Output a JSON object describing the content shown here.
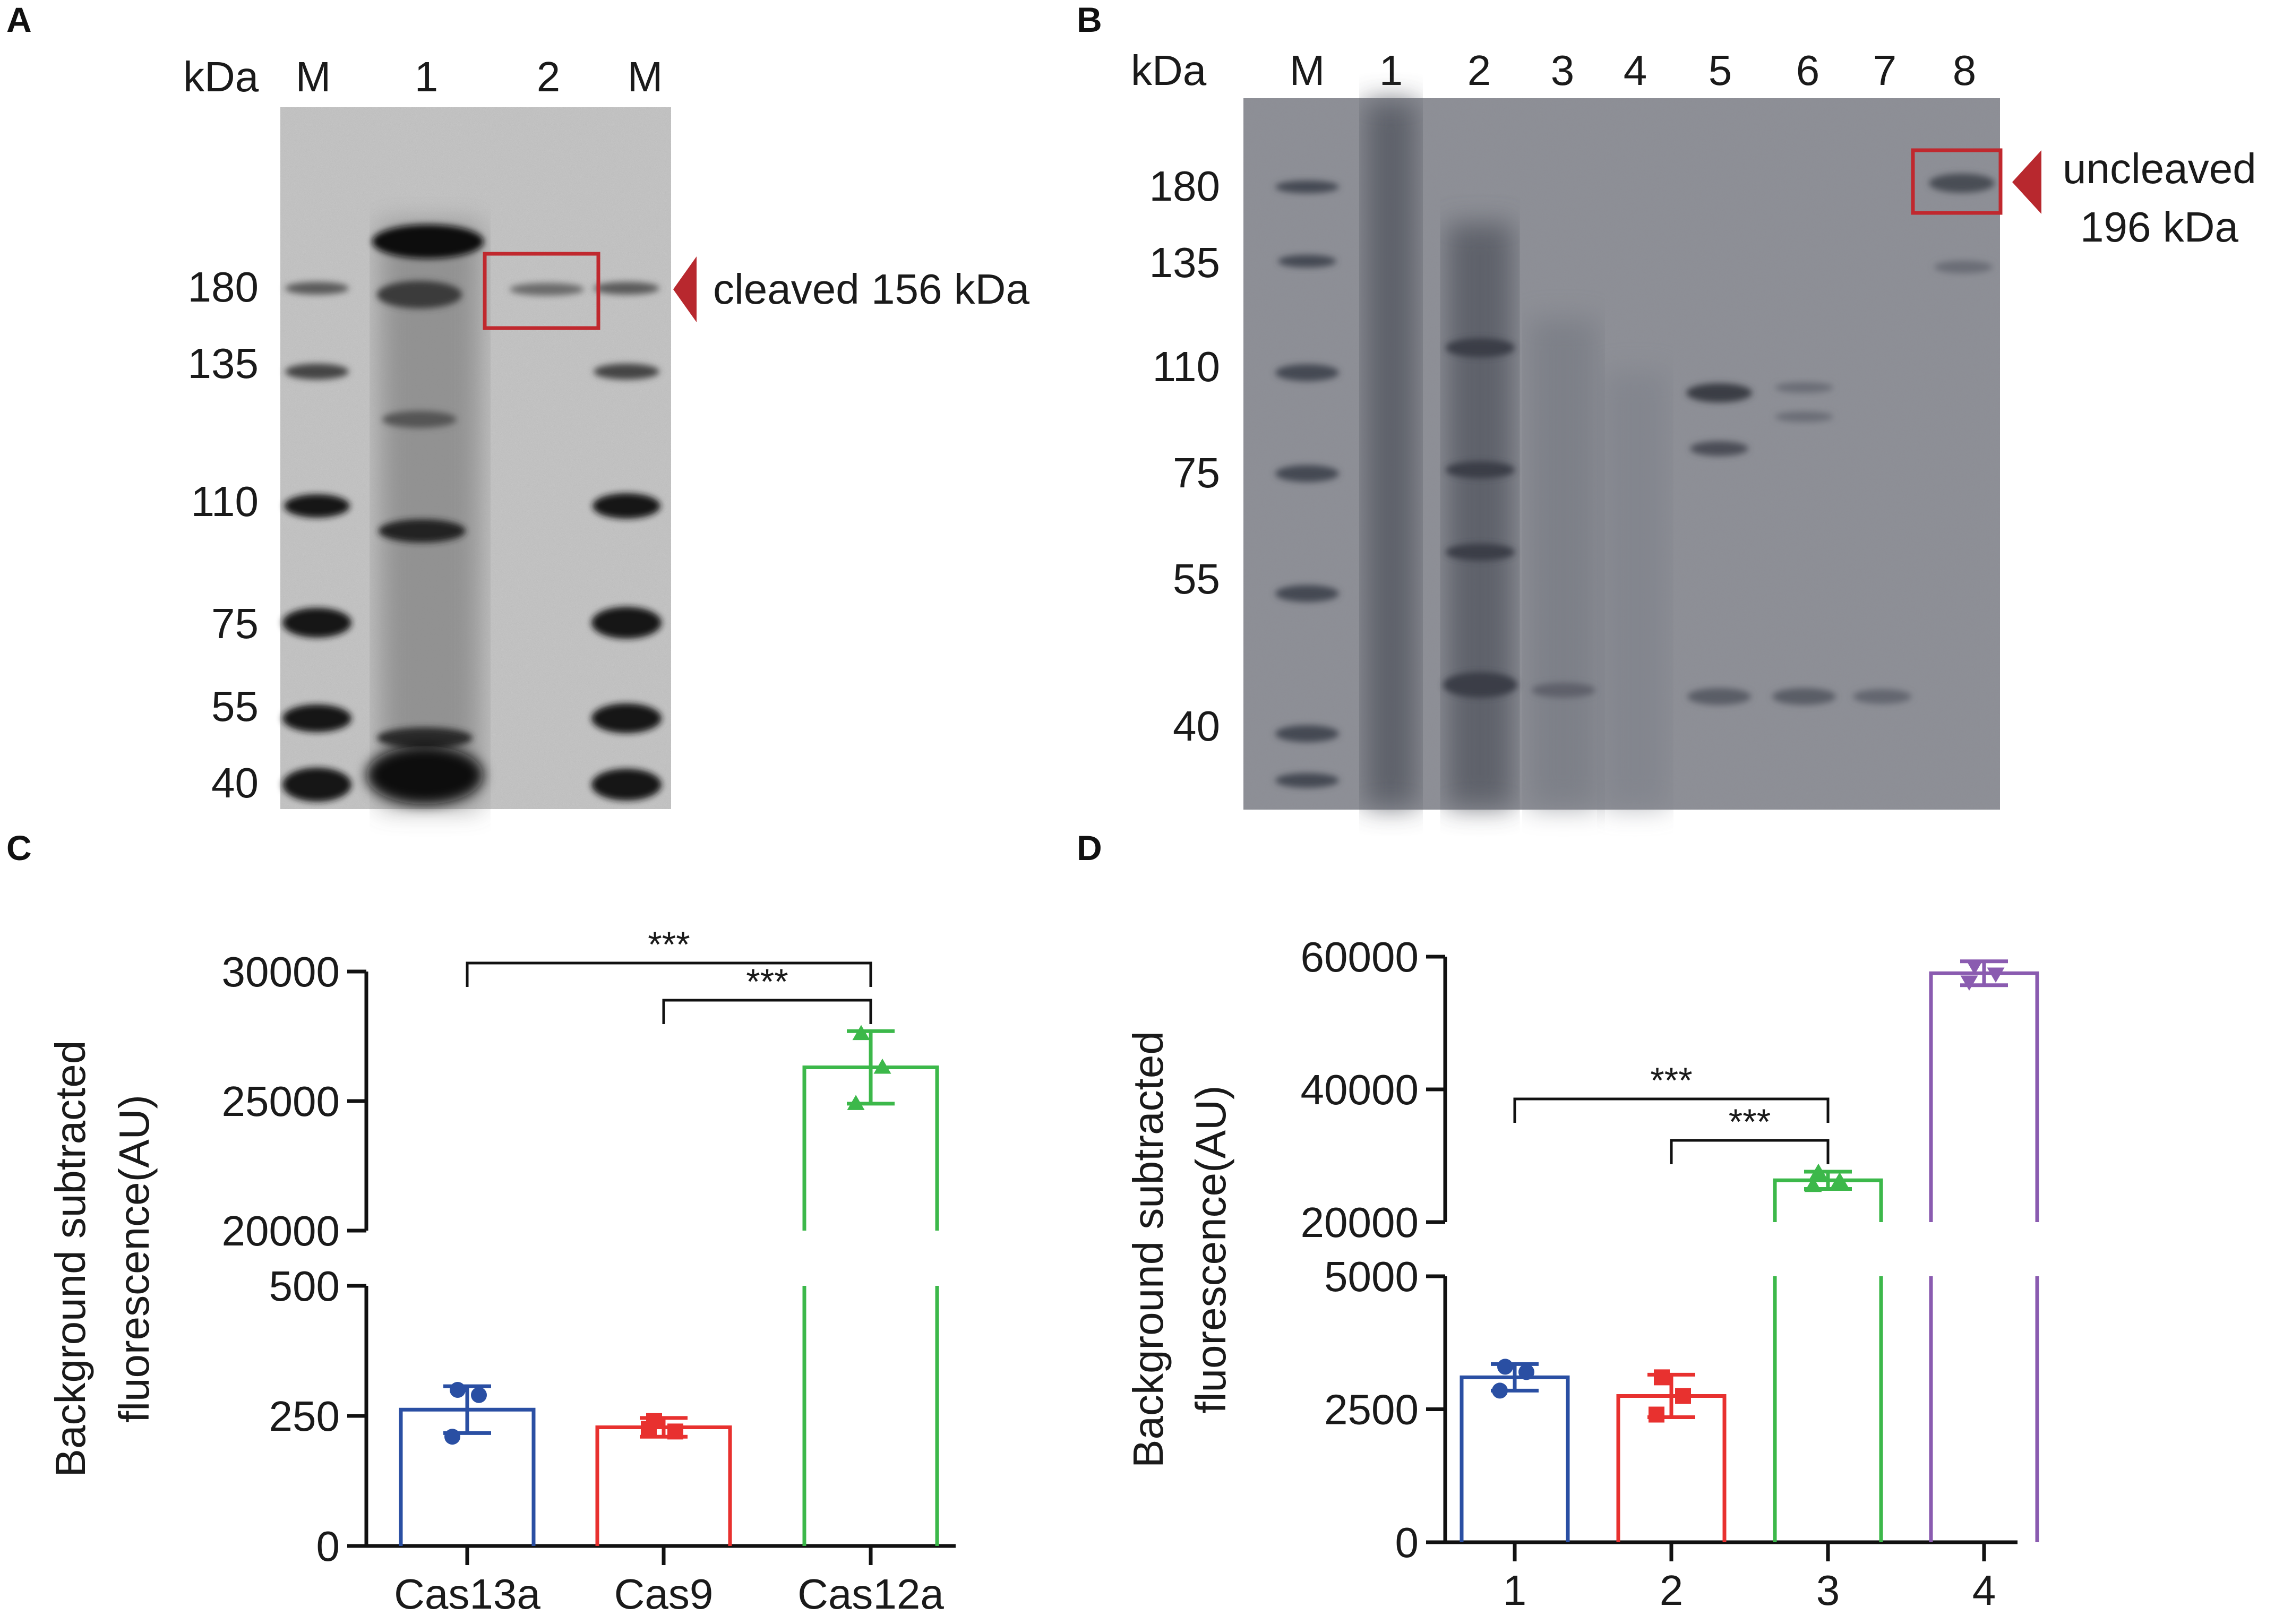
{
  "figure": {
    "panels": [
      "A",
      "B",
      "C",
      "D"
    ]
  },
  "gel_a": {
    "unit_label": "kDa",
    "lanes": [
      "M",
      "1",
      "2",
      "M"
    ],
    "markers": [
      "180",
      "135",
      "110",
      "75",
      "55",
      "40"
    ],
    "annotation": "cleaved 156 kDa",
    "colors": {
      "box": "#c0282e",
      "arrow": "#b8282e"
    }
  },
  "gel_b": {
    "unit_label": "kDa",
    "lanes": [
      "M",
      "1",
      "2",
      "3",
      "4",
      "5",
      "6",
      "7",
      "8"
    ],
    "markers": [
      "180",
      "135",
      "110",
      "75",
      "55",
      "40"
    ],
    "annotation_line1": "uncleaved",
    "annotation_line2": "196 kDa",
    "colors": {
      "box": "#c0282e",
      "arrow": "#b8282e"
    }
  },
  "chart_data": [
    {
      "panel": "C",
      "type": "bar",
      "ylabel_line1": "Background subtracted",
      "ylabel_line2": "fluorescence(AU)",
      "categories": [
        "Cas13a",
        "Cas9",
        "Cas12a"
      ],
      "values": [
        262,
        228,
        26300
      ],
      "errors": [
        45,
        18,
        1400
      ],
      "points": [
        [
          300,
          290,
          210
        ],
        [
          240,
          220,
          225
        ],
        [
          27600,
          26300,
          24900
        ]
      ],
      "markers": [
        "circle",
        "square",
        "triangle-up"
      ],
      "colors": [
        "#2a4fa3",
        "#e8312f",
        "#3cb84a"
      ],
      "axis_break": {
        "lower_ylim": [
          0,
          500
        ],
        "upper_ylim": [
          20000,
          30000
        ]
      },
      "ticks_lower": [
        "0",
        "250",
        "500"
      ],
      "ticks_upper": [
        "20000",
        "25000",
        "30000"
      ],
      "significance": [
        {
          "from": "Cas13a",
          "to": "Cas12a",
          "label": "***"
        },
        {
          "from": "Cas9",
          "to": "Cas12a",
          "label": "***"
        }
      ]
    },
    {
      "panel": "D",
      "type": "bar",
      "ylabel_line1": "Background subtracted",
      "ylabel_line2": "fluorescence(AU)",
      "categories": [
        "1",
        "2",
        "3",
        "4"
      ],
      "values": [
        3100,
        2750,
        26300,
        57500
      ],
      "errors": [
        250,
        400,
        1300,
        1800
      ],
      "points": [
        [
          3300,
          3200,
          2850
        ],
        [
          3100,
          2750,
          2400
        ],
        [
          27500,
          26200,
          25500
        ],
        [
          58600,
          57400,
          56200
        ]
      ],
      "markers": [
        "circle",
        "square",
        "triangle-up",
        "triangle-down"
      ],
      "colors": [
        "#2a4fa3",
        "#e8312f",
        "#3cb84a",
        "#8a5bb0"
      ],
      "axis_break": {
        "lower_ylim": [
          0,
          5000
        ],
        "upper_ylim": [
          20000,
          60000
        ]
      },
      "ticks_lower": [
        "0",
        "2500",
        "5000"
      ],
      "ticks_upper": [
        "20000",
        "40000",
        "60000"
      ],
      "significance": [
        {
          "from": "1",
          "to": "3",
          "label": "***"
        },
        {
          "from": "2",
          "to": "3",
          "label": "***"
        }
      ]
    }
  ]
}
